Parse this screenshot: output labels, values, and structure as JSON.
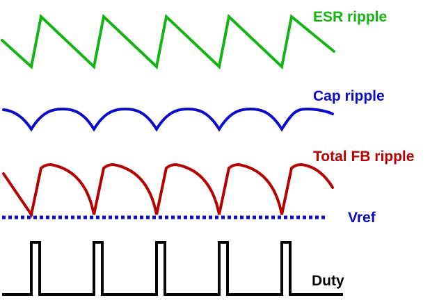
{
  "labels": {
    "esr": "ESR ripple",
    "cap": "Cap ripple",
    "total": "Total FB ripple",
    "vref": "Vref",
    "duty": "Duty"
  },
  "colors": {
    "esr": "#14b414",
    "cap": "#0a0ac8",
    "total": "#b40000",
    "vref": "#0a0ac8",
    "duty": "#000000"
  },
  "waveform": {
    "cycles": 5,
    "duty_fraction": 0.13
  }
}
